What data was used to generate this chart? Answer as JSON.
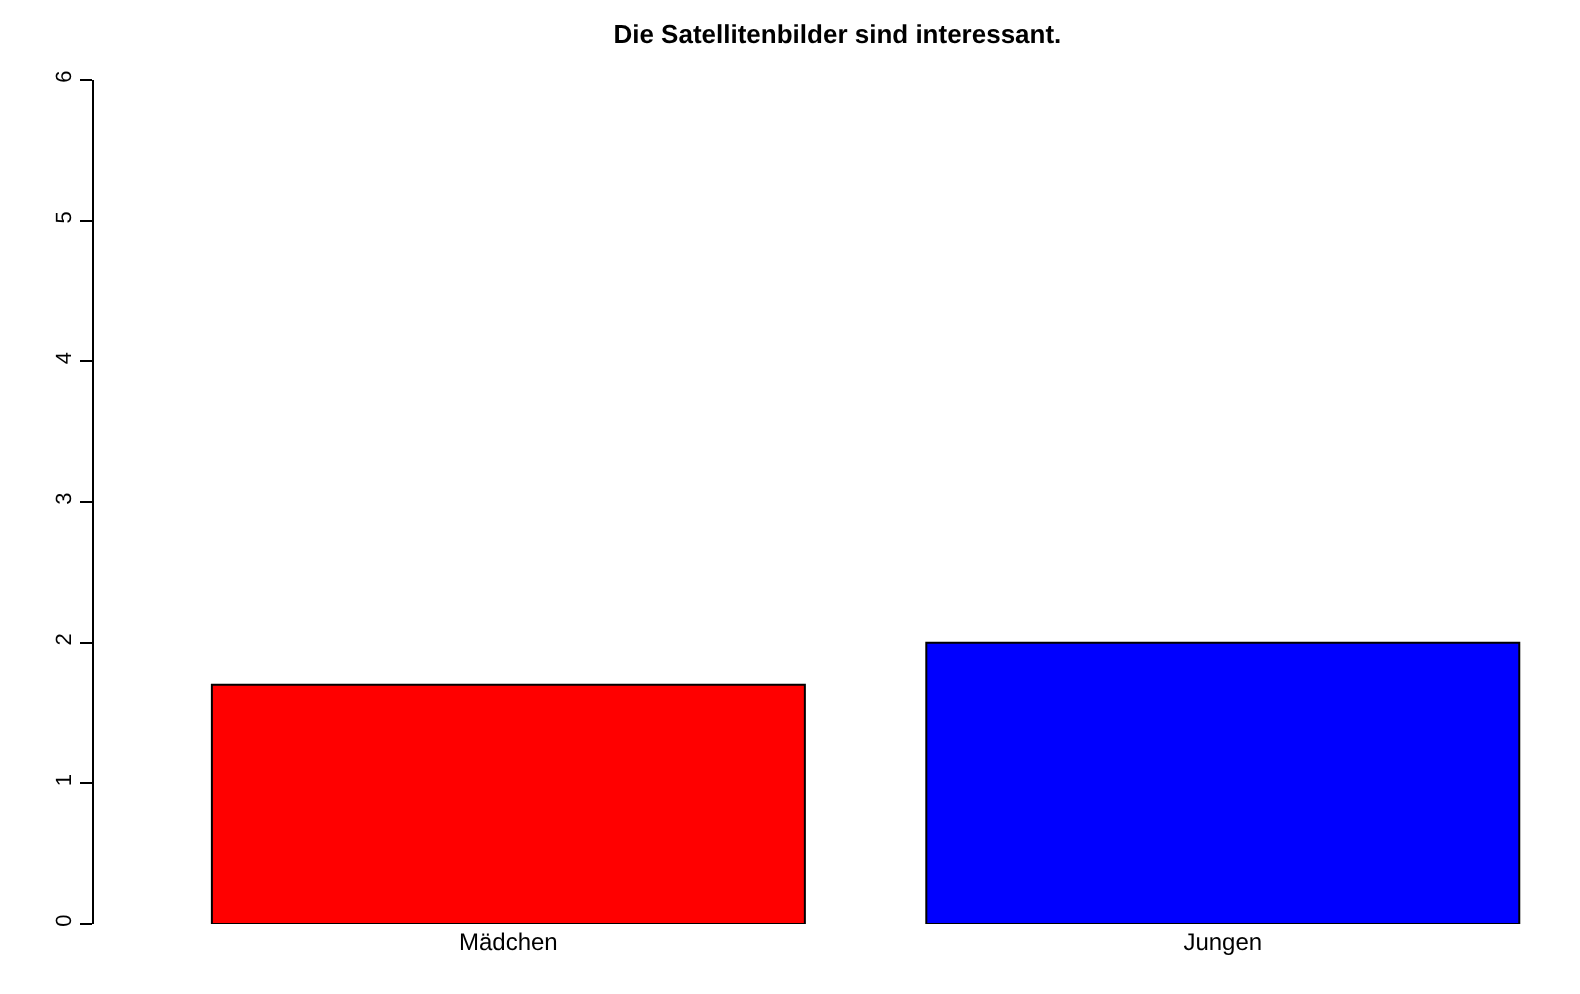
{
  "chart_data": {
    "type": "bar",
    "title": "Die Satellitenbilder sind interessant.",
    "categories": [
      "Mädchen",
      "Jungen"
    ],
    "values": [
      1.7,
      2.0
    ],
    "colors": [
      "#ff0000",
      "#0000ff"
    ],
    "ylim": [
      0,
      6
    ],
    "yticks": [
      0,
      1,
      2,
      3,
      4,
      5,
      6
    ],
    "grid": false
  }
}
